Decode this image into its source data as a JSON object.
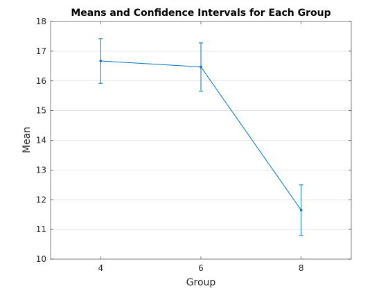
{
  "chart_data": {
    "type": "line",
    "title": "Means and Confidence Intervals for Each Group",
    "xlabel": "Group",
    "ylabel": "Mean",
    "xlim": [
      3,
      9
    ],
    "ylim": [
      10,
      18
    ],
    "x_ticks": [
      "4",
      "6",
      "8"
    ],
    "y_ticks": [
      "10",
      "11",
      "12",
      "13",
      "14",
      "15",
      "16",
      "17",
      "18"
    ],
    "grid": "y-major",
    "legend": "none",
    "error_bars": true,
    "series": [
      {
        "x": [
          4,
          6,
          8
        ],
        "values": [
          16.67,
          16.47,
          11.65
        ],
        "lower": [
          15.92,
          15.65,
          10.8
        ],
        "upper": [
          17.42,
          17.28,
          12.5
        ]
      }
    ],
    "colors": {
      "series": "#0072bd",
      "grid": "#dfdfdf",
      "axis": "#262626"
    }
  }
}
